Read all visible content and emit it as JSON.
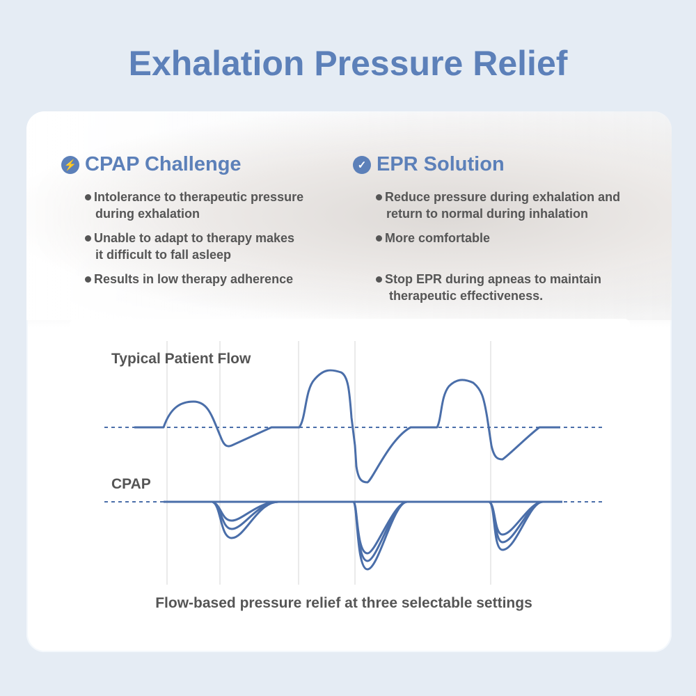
{
  "title": "Exhalation Pressure Relief",
  "challenge": {
    "heading": "CPAP Challenge",
    "icon": "lightning-icon",
    "items": [
      "Intolerance to therapeutic pressure",
      "during exhalation",
      "Unable  to adapt to therapy makes",
      "it difficult to fall asleep",
      "Results in low therapy adherence"
    ]
  },
  "solution": {
    "heading": "EPR Solution",
    "icon": "check-icon",
    "items": [
      "Reduce  pressure  during exhalation and",
      "return to normal during inhalation",
      "More comfortable",
      "Stop  EPR  during apneas to maintain",
      "therapeutic effectiveness."
    ]
  },
  "diagram": {
    "flow_label": "Typical Patient Flow",
    "cpap_label": "CPAP",
    "caption": "Flow-based pressure relief at three selectable settings",
    "line_color": "#4a6ea9"
  }
}
